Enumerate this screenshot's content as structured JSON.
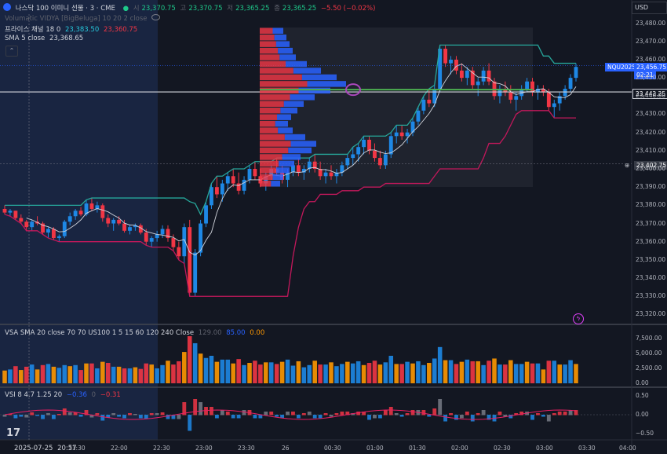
{
  "header": {
    "symbol_name": "나스닥 100 이미니 선물 · 3 · CME",
    "open_label": "시",
    "open": "23,370.75",
    "high_label": "고",
    "high": "23,370.75",
    "low_label": "저",
    "low": "23,365.25",
    "close_label": "종",
    "close": "23,365.25",
    "change": "−5.50 (−0.02%)",
    "currency": "USD"
  },
  "indicators": {
    "vidya": "Volumatic VIDYA [BigBeluga] 10 20 2 close",
    "channel_label": "프라이스 채널 18 0",
    "channel_upper": "23,383.50",
    "channel_lower": "23,360.75",
    "sma_label": "SMA 5 close",
    "sma_value": "23,368.65",
    "vsa_label": "VSA SMA 20 close 70 70 US100 1 5 15 60 120 240 Close",
    "vsa_v1": "129.00",
    "vsa_v2": "85.00",
    "vsa_v3": "0.00",
    "vsi_label": "VSI 8 4.7 1.25 20",
    "vsi_v1": "−0.36",
    "vsi_v2": "0",
    "vsi_v3": "−0.31"
  },
  "price_tags": {
    "symbol_tag": "NQU2025",
    "last_price": "23,456.75",
    "countdown": "02:21",
    "line1": "23,442.25",
    "line2": "23,402.75"
  },
  "x_axis": {
    "date_label": "2025-07-25",
    "time_label": "20:57",
    "ticks": [
      "21:30",
      "22:00",
      "22:30",
      "23:00",
      "23:30",
      "26",
      "00:30",
      "01:00",
      "01:30",
      "02:00",
      "02:30",
      "03:00",
      "03:30",
      "04:00"
    ]
  },
  "y_axis_ticks": [
    "23,480.00",
    "23,470.00",
    "23,460.00",
    "23,450.00",
    "23,440.00",
    "23,430.00",
    "23,420.00",
    "23,410.00",
    "23,400.00",
    "23,390.00",
    "23,380.00",
    "23,370.00",
    "23,360.00",
    "23,350.00",
    "23,340.00",
    "23,330.00",
    "23,320.00"
  ],
  "volume_axis_ticks": [
    "7,500.00",
    "5,000.00",
    "2,500.00",
    "0.00"
  ],
  "vsi_axis_ticks": [
    "0.50",
    "0.00",
    "−0.50"
  ],
  "colors": {
    "bull": "#1e88e5",
    "bear": "#f23645",
    "bg": "#131722",
    "channel_upper": "#26a69a",
    "channel_lower": "#c2185b",
    "sma": "#d1d4dc",
    "poc": "#4caf50",
    "profile_up": "#2962ff",
    "profile_down": "#f23645"
  },
  "chart_data": {
    "type": "candlestick",
    "y_range": [
      23315,
      23485
    ],
    "x_range": [
      "2025-07-25 20:57",
      "2025-07-26 04:00"
    ],
    "candles": [
      [
        23378,
        23380,
        23375,
        23376
      ],
      [
        23376,
        23378,
        23374,
        23377
      ],
      [
        23377,
        23377,
        23372,
        23373
      ],
      [
        23373,
        23375,
        23370,
        23371
      ],
      [
        23371,
        23372,
        23366,
        23368
      ],
      [
        23368,
        23372,
        23366,
        23371
      ],
      [
        23371,
        23374,
        23369,
        23370
      ],
      [
        23370,
        23371,
        23364,
        23365
      ],
      [
        23365,
        23368,
        23362,
        23367
      ],
      [
        23367,
        23368,
        23361,
        23362
      ],
      [
        23362,
        23364,
        23360,
        23363
      ],
      [
        23363,
        23372,
        23362,
        23371
      ],
      [
        23371,
        23376,
        23369,
        23374
      ],
      [
        23374,
        23378,
        23372,
        23377
      ],
      [
        23377,
        23379,
        23374,
        23375
      ],
      [
        23375,
        23383,
        23374,
        23381
      ],
      [
        23381,
        23384,
        23377,
        23378
      ],
      [
        23378,
        23382,
        23376,
        23380
      ],
      [
        23380,
        23381,
        23371,
        23373
      ],
      [
        23373,
        23375,
        23368,
        23370
      ],
      [
        23370,
        23373,
        23366,
        23372
      ],
      [
        23372,
        23374,
        23369,
        23370
      ],
      [
        23370,
        23372,
        23365,
        23366
      ],
      [
        23366,
        23369,
        23364,
        23368
      ],
      [
        23368,
        23370,
        23366,
        23369
      ],
      [
        23369,
        23370,
        23364,
        23365
      ],
      [
        23365,
        23367,
        23358,
        23360
      ],
      [
        23360,
        23363,
        23357,
        23362
      ],
      [
        23362,
        23366,
        23360,
        23364
      ],
      [
        23364,
        23369,
        23362,
        23367
      ],
      [
        23367,
        23369,
        23360,
        23362
      ],
      [
        23362,
        23364,
        23355,
        23357
      ],
      [
        23357,
        23360,
        23350,
        23352
      ],
      [
        23352,
        23370,
        23348,
        23368
      ],
      [
        23368,
        23372,
        23330,
        23332
      ],
      [
        23332,
        23356,
        23330,
        23354
      ],
      [
        23354,
        23372,
        23352,
        23370
      ],
      [
        23370,
        23382,
        23368,
        23380
      ],
      [
        23380,
        23392,
        23378,
        23390
      ],
      [
        23390,
        23396,
        23384,
        23386
      ],
      [
        23386,
        23394,
        23382,
        23392
      ],
      [
        23392,
        23398,
        23388,
        23396
      ],
      [
        23396,
        23400,
        23390,
        23392
      ],
      [
        23392,
        23398,
        23386,
        23388
      ],
      [
        23388,
        23396,
        23386,
        23394
      ],
      [
        23394,
        23402,
        23392,
        23400
      ],
      [
        23400,
        23404,
        23394,
        23396
      ],
      [
        23396,
        23400,
        23390,
        23392
      ],
      [
        23392,
        23398,
        23388,
        23396
      ],
      [
        23396,
        23402,
        23394,
        23400
      ],
      [
        23400,
        23406,
        23396,
        23398
      ],
      [
        23398,
        23402,
        23392,
        23394
      ],
      [
        23394,
        23400,
        23390,
        23398
      ],
      [
        23398,
        23404,
        23396,
        23402
      ],
      [
        23402,
        23406,
        23396,
        23398
      ],
      [
        23398,
        23402,
        23394,
        23400
      ],
      [
        23400,
        23406,
        23398,
        23404
      ],
      [
        23404,
        23408,
        23398,
        23400
      ],
      [
        23400,
        23404,
        23394,
        23396
      ],
      [
        23396,
        23400,
        23392,
        23398
      ],
      [
        23398,
        23402,
        23394,
        23396
      ],
      [
        23396,
        23400,
        23392,
        23398
      ],
      [
        23398,
        23404,
        23396,
        23402
      ],
      [
        23402,
        23408,
        23400,
        23406
      ],
      [
        23406,
        23412,
        23402,
        23408
      ],
      [
        23408,
        23414,
        23404,
        23412
      ],
      [
        23412,
        23418,
        23408,
        23416
      ],
      [
        23416,
        23418,
        23408,
        23410
      ],
      [
        23410,
        23414,
        23404,
        23406
      ],
      [
        23406,
        23410,
        23400,
        23402
      ],
      [
        23402,
        23410,
        23400,
        23408
      ],
      [
        23408,
        23420,
        23406,
        23418
      ],
      [
        23418,
        23424,
        23414,
        23420
      ],
      [
        23420,
        23424,
        23416,
        23418
      ],
      [
        23418,
        23422,
        23414,
        23420
      ],
      [
        23420,
        23428,
        23418,
        23426
      ],
      [
        23426,
        23434,
        23424,
        23432
      ],
      [
        23432,
        23440,
        23430,
        23438
      ],
      [
        23438,
        23444,
        23434,
        23436
      ],
      [
        23436,
        23446,
        23434,
        23444
      ],
      [
        23444,
        23468,
        23442,
        23466
      ],
      [
        23466,
        23468,
        23456,
        23458
      ],
      [
        23458,
        23462,
        23452,
        23460
      ],
      [
        23460,
        23462,
        23452,
        23454
      ],
      [
        23454,
        23458,
        23448,
        23450
      ],
      [
        23450,
        23456,
        23446,
        23454
      ],
      [
        23454,
        23456,
        23444,
        23446
      ],
      [
        23446,
        23450,
        23440,
        23448
      ],
      [
        23448,
        23456,
        23446,
        23454
      ],
      [
        23454,
        23458,
        23446,
        23448
      ],
      [
        23448,
        23450,
        23438,
        23440
      ],
      [
        23440,
        23446,
        23436,
        23444
      ],
      [
        23444,
        23448,
        23440,
        23442
      ],
      [
        23442,
        23446,
        23436,
        23438
      ],
      [
        23438,
        23442,
        23432,
        23440
      ],
      [
        23440,
        23446,
        23438,
        23444
      ],
      [
        23444,
        23450,
        23442,
        23448
      ],
      [
        23448,
        23450,
        23440,
        23442
      ],
      [
        23442,
        23446,
        23438,
        23444
      ],
      [
        23444,
        23446,
        23440,
        23442
      ],
      [
        23442,
        23444,
        23432,
        23434
      ],
      [
        23434,
        23438,
        23428,
        23436
      ],
      [
        23436,
        23442,
        23432,
        23440
      ],
      [
        23440,
        23446,
        23438,
        23444
      ],
      [
        23444,
        23452,
        23442,
        23450
      ],
      [
        23450,
        23458,
        23448,
        23456
      ]
    ]
  }
}
